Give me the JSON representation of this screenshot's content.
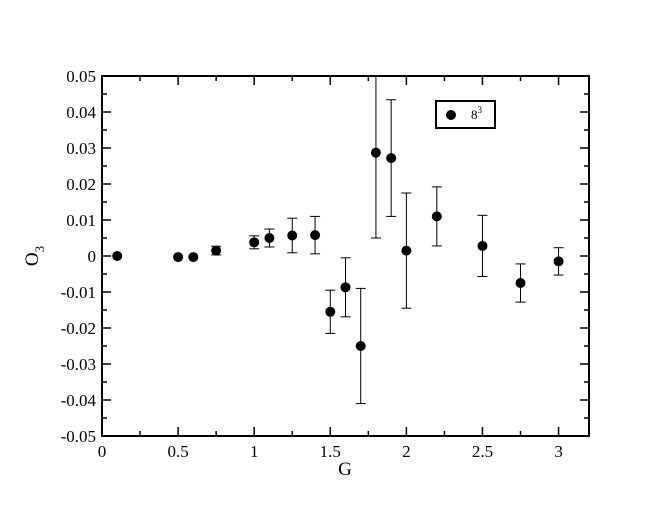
{
  "chart_data": {
    "type": "scatter",
    "xlabel": "G",
    "ylabel_main": "O",
    "ylabel_sub": "3",
    "xlim": [
      0,
      3.2
    ],
    "ylim": [
      -0.05,
      0.05
    ],
    "x_ticks": [
      0,
      0.5,
      1,
      1.5,
      2,
      2.5,
      3
    ],
    "x_tick_labels": [
      "0",
      "0.5",
      "1",
      "1.5",
      "2",
      "2.5",
      "3"
    ],
    "y_ticks": [
      -0.05,
      -0.04,
      -0.03,
      -0.02,
      -0.01,
      0,
      0.01,
      0.02,
      0.03,
      0.04,
      0.05
    ],
    "y_tick_labels": [
      "-0.05",
      "-0.04",
      "-0.03",
      "-0.02",
      "-0.01",
      "0",
      "0.01",
      "0.02",
      "0.03",
      "0.04",
      "0.05"
    ],
    "legend": {
      "base": "8",
      "sup": "3",
      "position": "top-right"
    },
    "marker_color": "#000000",
    "grid": false,
    "series": [
      {
        "name": "8^3",
        "points": [
          {
            "x": 0.1,
            "y": 0.0,
            "err": 0.0
          },
          {
            "x": 0.5,
            "y": -0.0003,
            "err": 0.0
          },
          {
            "x": 0.6,
            "y": -0.0003,
            "err": 0.0
          },
          {
            "x": 0.75,
            "y": 0.0015,
            "err": 0.0012
          },
          {
            "x": 1.0,
            "y": 0.0038,
            "err": 0.0018
          },
          {
            "x": 1.1,
            "y": 0.005,
            "err": 0.0025
          },
          {
            "x": 1.25,
            "y": 0.0057,
            "err": 0.0048
          },
          {
            "x": 1.4,
            "y": 0.0058,
            "err": 0.0052
          },
          {
            "x": 1.5,
            "y": -0.0155,
            "err": 0.006
          },
          {
            "x": 1.6,
            "y": -0.0087,
            "err": 0.0082
          },
          {
            "x": 1.7,
            "y": -0.025,
            "err": 0.016
          },
          {
            "x": 1.8,
            "y": 0.0287,
            "err": 0.0237
          },
          {
            "x": 1.9,
            "y": 0.0272,
            "err": 0.0162
          },
          {
            "x": 2.0,
            "y": 0.0015,
            "err": 0.016
          },
          {
            "x": 2.2,
            "y": 0.011,
            "err": 0.0082
          },
          {
            "x": 2.5,
            "y": 0.0028,
            "err": 0.0085
          },
          {
            "x": 2.75,
            "y": -0.0075,
            "err": 0.0053
          },
          {
            "x": 3.0,
            "y": -0.0015,
            "err": 0.0038
          }
        ]
      }
    ]
  }
}
